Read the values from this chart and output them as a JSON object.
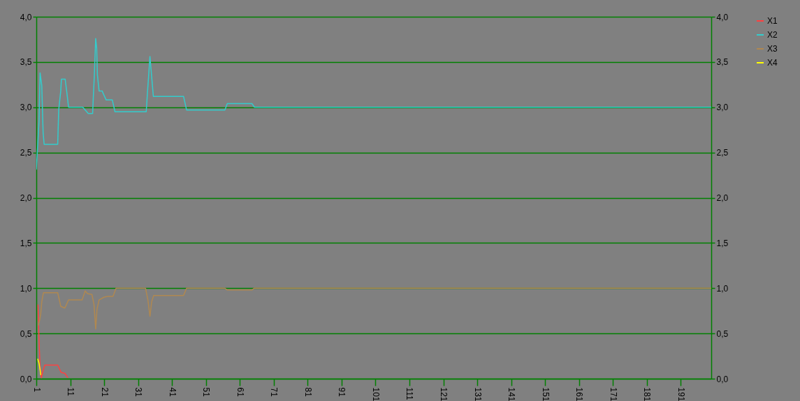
{
  "chart_data": {
    "type": "line",
    "xlim": [
      1,
      200
    ],
    "xticks": [
      1,
      11,
      21,
      31,
      41,
      51,
      61,
      71,
      81,
      91,
      101,
      111,
      121,
      131,
      141,
      151,
      161,
      171,
      181,
      191
    ],
    "ylim": [
      0,
      4
    ],
    "yticks": [
      {
        "value": 0,
        "label": "0,0"
      },
      {
        "value": 0.5,
        "label": "0,5"
      },
      {
        "value": 1,
        "label": "1,0"
      },
      {
        "value": 1.5,
        "label": "1,5"
      },
      {
        "value": 2,
        "label": "2,0"
      },
      {
        "value": 2.5,
        "label": "2,5"
      },
      {
        "value": 3,
        "label": "3,0"
      },
      {
        "value": 3.5,
        "label": "3,5"
      },
      {
        "value": 4,
        "label": "4,0"
      }
    ],
    "y2lim": [
      0,
      4
    ],
    "y2ticks": [
      {
        "value": 0,
        "label": "0,0"
      },
      {
        "value": 0.5,
        "label": "0,5"
      },
      {
        "value": 1,
        "label": "1,0"
      },
      {
        "value": 1.5,
        "label": "1,5"
      },
      {
        "value": 2,
        "label": "2,0"
      },
      {
        "value": 2.5,
        "label": "2,5"
      },
      {
        "value": 3,
        "label": "3,0"
      },
      {
        "value": 3.5,
        "label": "3,5"
      },
      {
        "value": 4,
        "label": "4,0"
      }
    ],
    "grid": "y",
    "legend": "right",
    "marker": "none",
    "line_style": "solid",
    "series": [
      {
        "name": "X1",
        "color": "#ff4040",
        "x": [
          1.5,
          1.8,
          2.1,
          2.5,
          2.9,
          3.5,
          7.3,
          8.3,
          9.4,
          10.3
        ],
        "values": [
          0.82,
          0.41,
          0.13,
          0.01,
          0.08,
          0.15,
          0.15,
          0.07,
          0.06,
          0.01
        ]
      },
      {
        "name": "X2",
        "color": "#33cccc",
        "x": [
          1,
          1.8,
          2.1,
          2.6,
          3,
          3.3,
          7.3,
          7.6,
          8.2,
          8.4,
          9.5,
          10.1,
          10.5,
          14.7,
          16.3,
          17.6,
          17.8,
          18.1,
          18.5,
          18.8,
          19,
          19.5,
          20.4,
          21.1,
          21.6,
          23.4,
          24.2,
          33.4,
          33.8,
          34.1,
          34.5,
          35,
          35.5,
          44.4,
          45.3,
          56.6,
          57.3,
          64.6,
          65.3,
          200
        ],
        "values": [
          2.31,
          2.85,
          3.38,
          3.24,
          2.72,
          2.59,
          2.59,
          2.97,
          3.18,
          3.31,
          3.31,
          3.13,
          3.0,
          3.0,
          2.93,
          2.93,
          3.11,
          3.35,
          3.76,
          3.65,
          3.36,
          3.18,
          3.18,
          3.12,
          3.08,
          3.08,
          2.95,
          2.95,
          3.18,
          3.34,
          3.56,
          3.34,
          3.12,
          3.12,
          2.97,
          2.97,
          3.04,
          3.04,
          3.0,
          3.0
        ]
      },
      {
        "name": "X3",
        "color": "#b08850",
        "x": [
          1.6,
          2,
          2.3,
          2.6,
          3.1,
          7.3,
          8.2,
          9.4,
          10.5,
          14.5,
          15.4,
          16.1,
          17.4,
          18,
          18.5,
          18.9,
          19.5,
          20.9,
          22,
          23.6,
          24.5,
          33.2,
          33.9,
          34.5,
          35,
          35.6,
          44.4,
          45.3,
          56.6,
          57.3,
          64.6,
          65.2,
          200
        ],
        "values": [
          0.59,
          0.65,
          0.72,
          0.85,
          0.95,
          0.95,
          0.8,
          0.78,
          0.87,
          0.87,
          0.97,
          0.94,
          0.93,
          0.82,
          0.55,
          0.77,
          0.87,
          0.9,
          0.91,
          0.91,
          1.0,
          1.0,
          0.87,
          0.69,
          0.85,
          0.92,
          0.92,
          1.0,
          1.0,
          0.98,
          0.98,
          1.0,
          1.0
        ]
      },
      {
        "name": "X4",
        "color": "#ffff00",
        "x": [
          1.4,
          1.8,
          2.1,
          2.3
        ],
        "values": [
          0.22,
          0.17,
          0.1,
          0.04
        ]
      }
    ]
  }
}
